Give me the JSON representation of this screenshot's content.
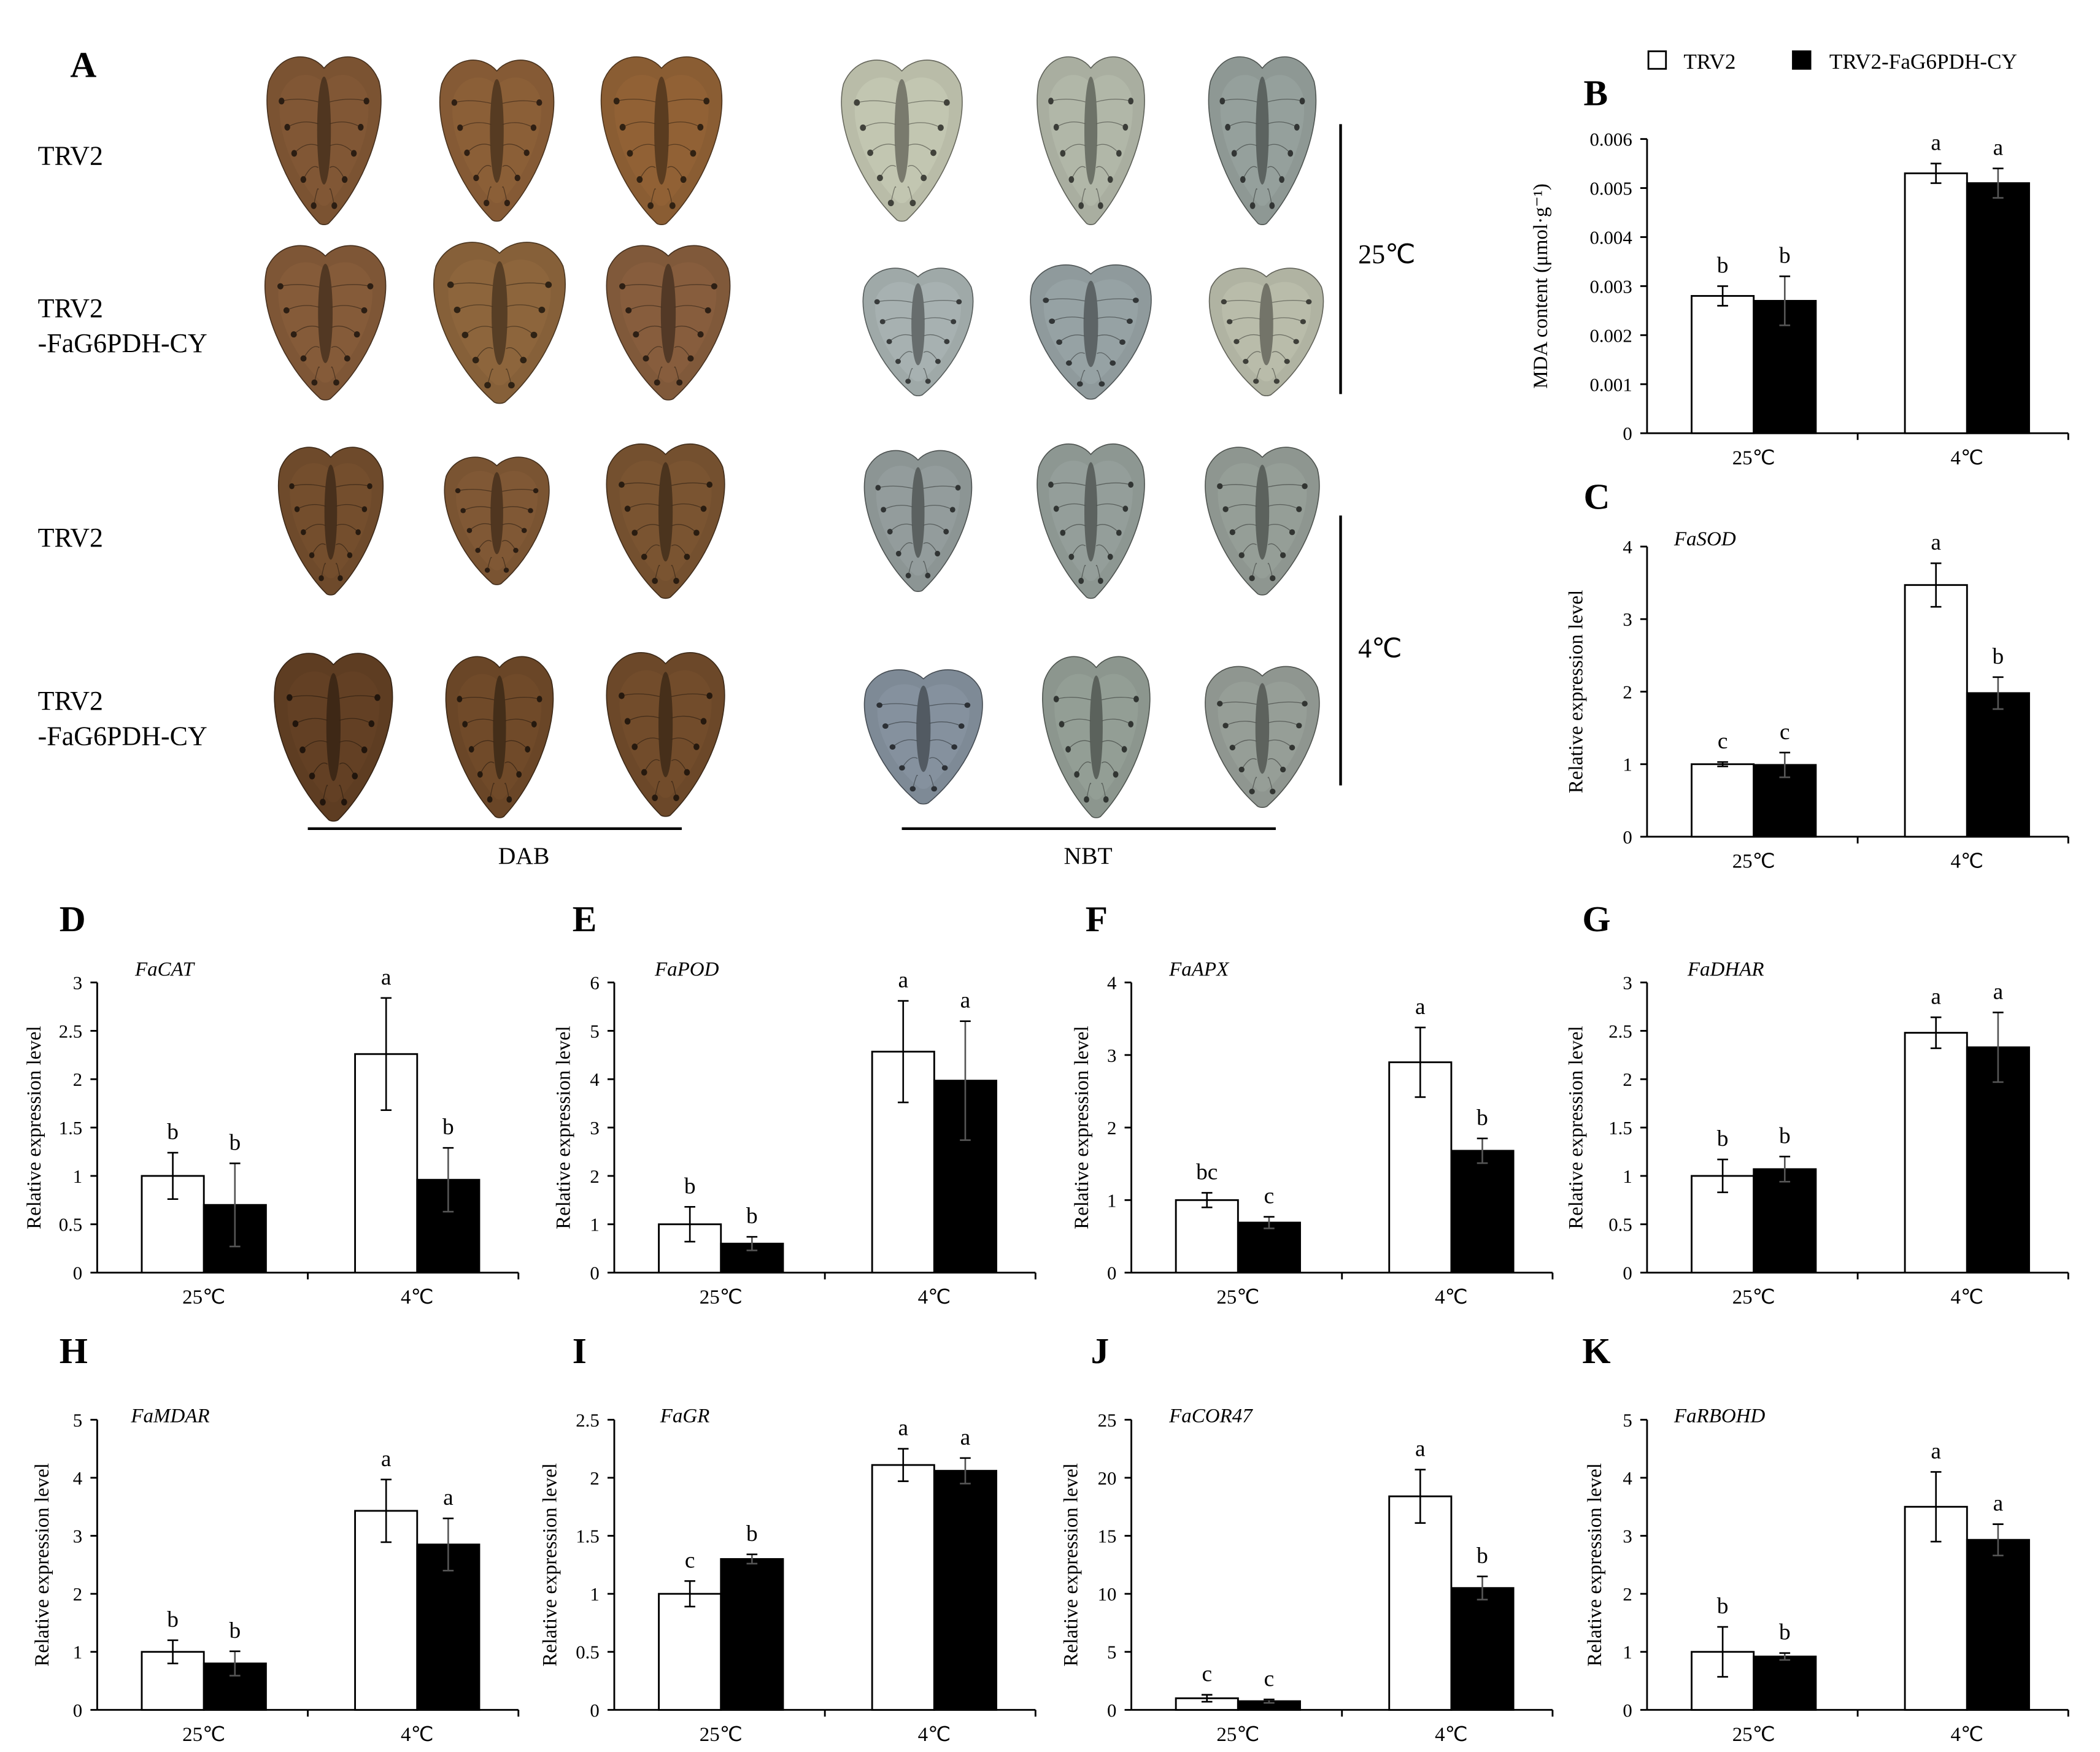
{
  "panel_a": {
    "label": "A",
    "rows": [
      {
        "line1": "TRV2"
      },
      {
        "line1": "TRV2",
        "line2": "-FaG6PDH-CY"
      },
      {
        "line1": "TRV2"
      },
      {
        "line1": "TRV2",
        "line2": "-FaG6PDH-CY"
      }
    ],
    "temperatures": [
      "25℃",
      "4℃"
    ],
    "stains": [
      "DAB",
      "NBT"
    ],
    "dab_tones": [
      "#7b5332",
      "#855a35",
      "#8a5d33",
      "#7e5636",
      "#866039",
      "#80593a",
      "#6e4a2b",
      "#7a5432",
      "#74502f",
      "#5e3d22",
      "#6a4627",
      "#6c4829"
    ],
    "nbt_tones": [
      "#b9bca8",
      "#a9aea0",
      "#8e9894",
      "#9fa9a8",
      "#8f9a9c",
      "#b0b3a2",
      "#8c9594",
      "#8d9792",
      "#8e9690",
      "#7e8a96",
      "#8c968e",
      "#8f9690"
    ]
  },
  "legend": {
    "items": [
      {
        "label": "TRV2",
        "color": "#ffffff"
      },
      {
        "label": "TRV2-FaG6PDH-CY",
        "color": "#000000"
      }
    ]
  },
  "chart_data": [
    {
      "panel": "B",
      "type": "bar",
      "title": "",
      "xlabel": "",
      "ylabel": "MDA content (μmol·g⁻¹)",
      "categories": [
        "25℃",
        "4℃"
      ],
      "ylim": [
        0,
        0.006
      ],
      "yticks": [
        "0",
        "0.001",
        "0.002",
        "0.003",
        "0.004",
        "0.005",
        "0.006"
      ],
      "series": [
        {
          "name": "TRV2",
          "values": [
            0.0028,
            0.0053
          ],
          "errors": [
            0.0002,
            0.0002
          ],
          "letters": [
            "b",
            "a"
          ]
        },
        {
          "name": "TRV2-FaG6PDH-CY",
          "values": [
            0.0027,
            0.0051
          ],
          "errors": [
            0.0005,
            0.0003
          ],
          "letters": [
            "b",
            "a"
          ]
        }
      ]
    },
    {
      "panel": "C",
      "type": "bar",
      "title": "FaSOD",
      "xlabel": "",
      "ylabel": "Relative expression level",
      "categories": [
        "25℃",
        "4℃"
      ],
      "ylim": [
        0,
        4
      ],
      "yticks": [
        "0",
        "1",
        "2",
        "3",
        "4"
      ],
      "series": [
        {
          "name": "TRV2",
          "values": [
            1.0,
            3.47
          ],
          "errors": [
            0.03,
            0.3
          ],
          "letters": [
            "c",
            "a"
          ]
        },
        {
          "name": "TRV2-FaG6PDH-CY",
          "values": [
            0.99,
            1.98
          ],
          "errors": [
            0.17,
            0.22
          ],
          "letters": [
            "c",
            "b"
          ]
        }
      ]
    },
    {
      "panel": "D",
      "type": "bar",
      "title": "FaCAT",
      "xlabel": "",
      "ylabel": "Relative expression level",
      "categories": [
        "25℃",
        "4℃"
      ],
      "ylim": [
        0,
        3
      ],
      "yticks": [
        "0",
        "0.5",
        "1",
        "1.5",
        "2",
        "2.5",
        "3"
      ],
      "series": [
        {
          "name": "TRV2",
          "values": [
            1.0,
            2.26
          ],
          "errors": [
            0.24,
            0.58
          ],
          "letters": [
            "b",
            "a"
          ]
        },
        {
          "name": "TRV2-FaG6PDH-CY",
          "values": [
            0.7,
            0.96
          ],
          "errors": [
            0.43,
            0.33
          ],
          "letters": [
            "b",
            "b"
          ]
        }
      ]
    },
    {
      "panel": "E",
      "type": "bar",
      "title": "FaPOD",
      "xlabel": "",
      "ylabel": "Relative expression level",
      "categories": [
        "25℃",
        "4℃"
      ],
      "ylim": [
        0,
        6
      ],
      "yticks": [
        "0",
        "1",
        "2",
        "3",
        "4",
        "5",
        "6"
      ],
      "series": [
        {
          "name": "TRV2",
          "values": [
            1.0,
            4.57
          ],
          "errors": [
            0.36,
            1.05
          ],
          "letters": [
            "b",
            "a"
          ]
        },
        {
          "name": "TRV2-FaG6PDH-CY",
          "values": [
            0.6,
            3.97
          ],
          "errors": [
            0.14,
            1.23
          ],
          "letters": [
            "b",
            "a"
          ]
        }
      ]
    },
    {
      "panel": "F",
      "type": "bar",
      "title": "FaAPX",
      "xlabel": "",
      "ylabel": "Relative expression level",
      "categories": [
        "25℃",
        "4℃"
      ],
      "ylim": [
        0,
        4
      ],
      "yticks": [
        "0",
        "1",
        "2",
        "3",
        "4"
      ],
      "series": [
        {
          "name": "TRV2",
          "values": [
            1.0,
            2.9
          ],
          "errors": [
            0.1,
            0.48
          ],
          "letters": [
            "bc",
            "a"
          ]
        },
        {
          "name": "TRV2-FaG6PDH-CY",
          "values": [
            0.69,
            1.68
          ],
          "errors": [
            0.08,
            0.17
          ],
          "letters": [
            "c",
            "b"
          ]
        }
      ]
    },
    {
      "panel": "G",
      "type": "bar",
      "title": "FaDHAR",
      "xlabel": "",
      "ylabel": "Relative expression level",
      "categories": [
        "25℃",
        "4℃"
      ],
      "ylim": [
        0,
        3
      ],
      "yticks": [
        "0",
        "0.5",
        "1",
        "1.5",
        "2",
        "2.5",
        "3"
      ],
      "series": [
        {
          "name": "TRV2",
          "values": [
            1.0,
            2.48
          ],
          "errors": [
            0.17,
            0.16
          ],
          "letters": [
            "b",
            "a"
          ]
        },
        {
          "name": "TRV2-FaG6PDH-CY",
          "values": [
            1.07,
            2.33
          ],
          "errors": [
            0.13,
            0.36
          ],
          "letters": [
            "b",
            "a"
          ]
        }
      ]
    },
    {
      "panel": "H",
      "type": "bar",
      "title": "FaMDAR",
      "xlabel": "",
      "ylabel": "Relative expression level",
      "categories": [
        "25℃",
        "4℃"
      ],
      "ylim": [
        0,
        5
      ],
      "yticks": [
        "0",
        "1",
        "2",
        "3",
        "4",
        "5"
      ],
      "series": [
        {
          "name": "TRV2",
          "values": [
            1.0,
            3.43
          ],
          "errors": [
            0.2,
            0.54
          ],
          "letters": [
            "b",
            "a"
          ]
        },
        {
          "name": "TRV2-FaG6PDH-CY",
          "values": [
            0.8,
            2.85
          ],
          "errors": [
            0.21,
            0.45
          ],
          "letters": [
            "b",
            "a"
          ]
        }
      ]
    },
    {
      "panel": "I",
      "type": "bar",
      "title": "FaGR",
      "xlabel": "",
      "ylabel": "Relative expression level",
      "categories": [
        "25℃",
        "4℃"
      ],
      "ylim": [
        0,
        2.5
      ],
      "yticks": [
        "0",
        "0.5",
        "1",
        "1.5",
        "2",
        "2.5"
      ],
      "series": [
        {
          "name": "TRV2",
          "values": [
            1.0,
            2.11
          ],
          "errors": [
            0.11,
            0.14
          ],
          "letters": [
            "c",
            "a"
          ]
        },
        {
          "name": "TRV2-FaG6PDH-CY",
          "values": [
            1.3,
            2.06
          ],
          "errors": [
            0.04,
            0.11
          ],
          "letters": [
            "b",
            "a"
          ]
        }
      ]
    },
    {
      "panel": "J",
      "type": "bar",
      "title": "FaCOR47",
      "xlabel": "",
      "ylabel": "Relative expression level",
      "categories": [
        "25℃",
        "4℃"
      ],
      "ylim": [
        0,
        25
      ],
      "yticks": [
        "0",
        "5",
        "10",
        "15",
        "20",
        "25"
      ],
      "series": [
        {
          "name": "TRV2",
          "values": [
            1.0,
            18.4
          ],
          "errors": [
            0.3,
            2.3
          ],
          "letters": [
            "c",
            "a"
          ]
        },
        {
          "name": "TRV2-FaG6PDH-CY",
          "values": [
            0.75,
            10.5
          ],
          "errors": [
            0.15,
            1.0
          ],
          "letters": [
            "c",
            "b"
          ]
        }
      ]
    },
    {
      "panel": "K",
      "type": "bar",
      "title": "FaRBOHD",
      "xlabel": "",
      "ylabel": "Relative expression level",
      "categories": [
        "25℃",
        "4℃"
      ],
      "ylim": [
        0,
        5
      ],
      "yticks": [
        "0",
        "1",
        "2",
        "3",
        "4",
        "5"
      ],
      "series": [
        {
          "name": "TRV2",
          "values": [
            1.0,
            3.5
          ],
          "errors": [
            0.43,
            0.6
          ],
          "letters": [
            "b",
            "a"
          ]
        },
        {
          "name": "TRV2-FaG6PDH-CY",
          "values": [
            0.92,
            2.93
          ],
          "errors": [
            0.06,
            0.27
          ],
          "letters": [
            "b",
            "a"
          ]
        }
      ]
    }
  ]
}
